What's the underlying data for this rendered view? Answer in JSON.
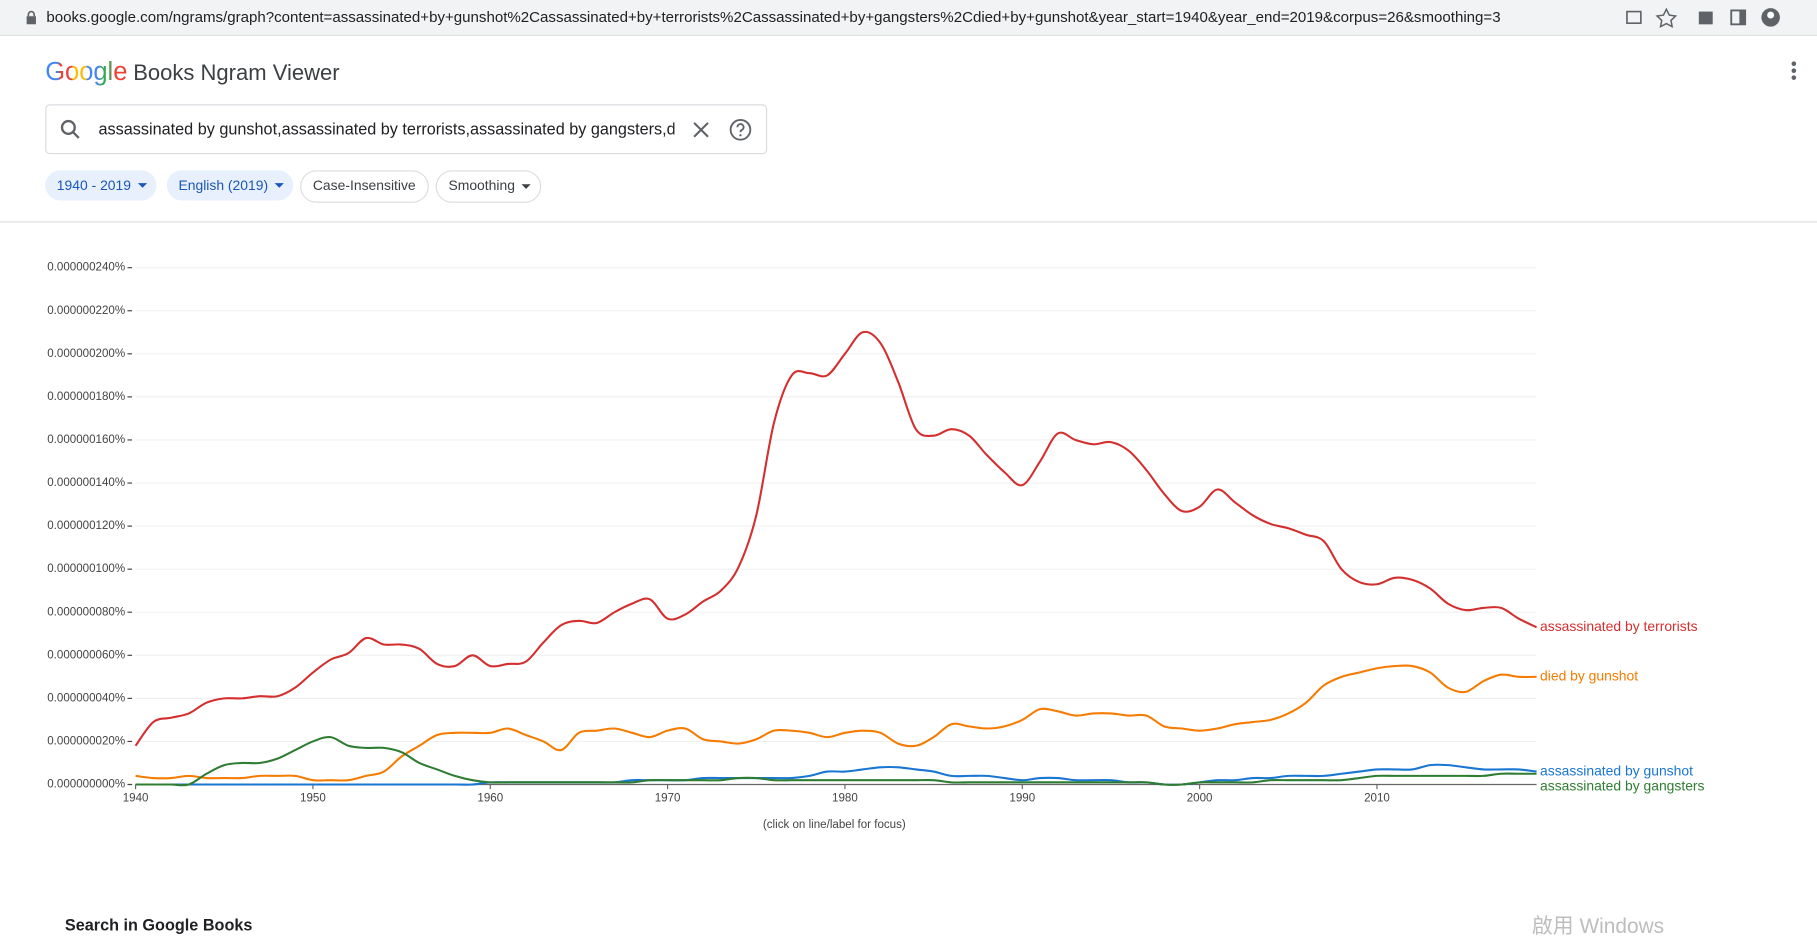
{
  "browser": {
    "url": "books.google.com/ngrams/graph?content=assassinated+by+gunshot%2Cassassinated+by+terrorists%2Cassassinated+by+gangsters%2Cdied+by+gunshot&year_start=1940&year_end=2019&corpus=26&smoothing=3"
  },
  "header": {
    "logo": "Google",
    "app": "Books Ngram Viewer"
  },
  "search": {
    "query": "assassinated by gunshot,assassinated by terrorists,assassinated by gangsters,died by gunshot"
  },
  "chips": [
    "1940 - 2019",
    "English (2019)",
    "Case-Insensitive",
    "Smoothing"
  ],
  "footer": {
    "section": "Search in Google Books",
    "watermark": "啟用 Windows"
  },
  "chart_data": {
    "type": "line",
    "note": "(click on line/label for focus)",
    "x": [
      1940,
      1941,
      1942,
      1943,
      1944,
      1945,
      1946,
      1947,
      1948,
      1949,
      1950,
      1951,
      1952,
      1953,
      1954,
      1955,
      1956,
      1957,
      1958,
      1959,
      1960,
      1961,
      1962,
      1963,
      1964,
      1965,
      1966,
      1967,
      1968,
      1969,
      1970,
      1971,
      1972,
      1973,
      1974,
      1975,
      1976,
      1977,
      1978,
      1979,
      1980,
      1981,
      1982,
      1983,
      1984,
      1985,
      1986,
      1987,
      1988,
      1989,
      1990,
      1991,
      1992,
      1993,
      1994,
      1995,
      1996,
      1997,
      1998,
      1999,
      2000,
      2001,
      2002,
      2003,
      2004,
      2005,
      2006,
      2007,
      2008,
      2009,
      2010,
      2011,
      2012,
      2013,
      2014,
      2015,
      2016,
      2017,
      2018,
      2019
    ],
    "xlim": [
      1940,
      2019
    ],
    "xticks": [
      1940,
      1950,
      1960,
      1970,
      1980,
      1990,
      2000,
      2010
    ],
    "ylim": [
      0,
      2.4e-07
    ],
    "yticks": [
      {
        "value": 0,
        "label": "0.000000000%"
      },
      {
        "value": 2e-08,
        "label": "0.000000020%"
      },
      {
        "value": 4e-08,
        "label": "0.000000040%"
      },
      {
        "value": 6e-08,
        "label": "0.000000060%"
      },
      {
        "value": 8e-08,
        "label": "0.000000080%"
      },
      {
        "value": 1e-07,
        "label": "0.000000100%"
      },
      {
        "value": 1.2e-07,
        "label": "0.000000120%"
      },
      {
        "value": 1.4e-07,
        "label": "0.000000140%"
      },
      {
        "value": 1.6e-07,
        "label": "0.000000160%"
      },
      {
        "value": 1.8e-07,
        "label": "0.000000180%"
      },
      {
        "value": 2e-07,
        "label": "0.000000200%"
      },
      {
        "value": 2.2e-07,
        "label": "0.000000220%"
      },
      {
        "value": 2.4e-07,
        "label": "0.000000240%"
      }
    ],
    "grid": true,
    "series": [
      {
        "name": "assassinated by terrorists",
        "color": "#d32f2f",
        "values": [
          1.8e-08,
          2.9e-08,
          3.1e-08,
          3.3e-08,
          3.8e-08,
          4e-08,
          4e-08,
          4.1e-08,
          4.1e-08,
          4.5e-08,
          5.2e-08,
          5.8e-08,
          6.1e-08,
          6.8e-08,
          6.5e-08,
          6.5e-08,
          6.3e-08,
          5.6e-08,
          5.5e-08,
          6e-08,
          5.5e-08,
          5.6e-08,
          5.7e-08,
          6.6e-08,
          7.4e-08,
          7.6e-08,
          7.5e-08,
          8e-08,
          8.4e-08,
          8.6e-08,
          7.7e-08,
          7.9e-08,
          8.5e-08,
          9e-08,
          1.01e-07,
          1.25e-07,
          1.68e-07,
          1.9e-07,
          1.91e-07,
          1.9e-07,
          2e-07,
          2.1e-07,
          2.05e-07,
          1.87e-07,
          1.65e-07,
          1.62e-07,
          1.65e-07,
          1.62e-07,
          1.53e-07,
          1.45e-07,
          1.39e-07,
          1.5e-07,
          1.63e-07,
          1.6e-07,
          1.58e-07,
          1.59e-07,
          1.55e-07,
          1.46e-07,
          1.35e-07,
          1.27e-07,
          1.29e-07,
          1.37e-07,
          1.31e-07,
          1.25e-07,
          1.21e-07,
          1.19e-07,
          1.16e-07,
          1.13e-07,
          1e-07,
          9.4e-08,
          9.3e-08,
          9.6e-08,
          9.5e-08,
          9.1e-08,
          8.4e-08,
          8.1e-08,
          8.2e-08,
          8.2e-08,
          7.7e-08,
          7.3e-08
        ]
      },
      {
        "name": "died by gunshot",
        "color": "#f57c00",
        "values": [
          4e-09,
          3e-09,
          3e-09,
          4e-09,
          3e-09,
          3e-09,
          3e-09,
          4e-09,
          4e-09,
          4e-09,
          2e-09,
          2e-09,
          2e-09,
          4e-09,
          6e-09,
          1.3e-08,
          1.8e-08,
          2.3e-08,
          2.4e-08,
          2.4e-08,
          2.4e-08,
          2.6e-08,
          2.3e-08,
          2e-08,
          1.6e-08,
          2.4e-08,
          2.5e-08,
          2.6e-08,
          2.4e-08,
          2.2e-08,
          2.5e-08,
          2.6e-08,
          2.1e-08,
          2e-08,
          1.9e-08,
          2.1e-08,
          2.5e-08,
          2.5e-08,
          2.4e-08,
          2.2e-08,
          2.4e-08,
          2.5e-08,
          2.4e-08,
          1.9e-08,
          1.8e-08,
          2.2e-08,
          2.8e-08,
          2.7e-08,
          2.6e-08,
          2.7e-08,
          3e-08,
          3.5e-08,
          3.4e-08,
          3.2e-08,
          3.3e-08,
          3.3e-08,
          3.2e-08,
          3.2e-08,
          2.7e-08,
          2.6e-08,
          2.5e-08,
          2.6e-08,
          2.8e-08,
          2.9e-08,
          3e-08,
          3.3e-08,
          3.8e-08,
          4.6e-08,
          5e-08,
          5.2e-08,
          5.4e-08,
          5.5e-08,
          5.5e-08,
          5.2e-08,
          4.5e-08,
          4.3e-08,
          4.8e-08,
          5.1e-08,
          5e-08,
          5e-08
        ]
      },
      {
        "name": "assassinated by gunshot",
        "color": "#1976d2",
        "values": [
          0,
          0,
          0,
          0,
          0,
          0,
          0,
          0,
          0,
          0,
          0,
          0,
          0,
          0,
          0,
          0,
          0,
          0,
          0,
          0,
          1e-09,
          1e-09,
          1e-09,
          1e-09,
          1e-09,
          1e-09,
          1e-09,
          1e-09,
          2e-09,
          2e-09,
          2e-09,
          2e-09,
          3e-09,
          3e-09,
          3e-09,
          3e-09,
          3e-09,
          3e-09,
          4e-09,
          6e-09,
          6e-09,
          7e-09,
          8e-09,
          8e-09,
          7e-09,
          6e-09,
          4e-09,
          4e-09,
          4e-09,
          3e-09,
          2e-09,
          3e-09,
          3e-09,
          2e-09,
          2e-09,
          2e-09,
          1e-09,
          1e-09,
          0,
          0,
          1e-09,
          2e-09,
          2e-09,
          3e-09,
          3e-09,
          4e-09,
          4e-09,
          4e-09,
          5e-09,
          6e-09,
          7e-09,
          7e-09,
          7e-09,
          9e-09,
          9e-09,
          8e-09,
          7e-09,
          7e-09,
          7e-09,
          6e-09
        ]
      },
      {
        "name": "assassinated by gangsters",
        "color": "#2e7d32",
        "values": [
          0,
          0,
          0,
          0,
          5e-09,
          9e-09,
          1e-08,
          1e-08,
          1.2e-08,
          1.6e-08,
          2e-08,
          2.2e-08,
          1.8e-08,
          1.7e-08,
          1.7e-08,
          1.5e-08,
          1e-08,
          7e-09,
          4e-09,
          2e-09,
          1e-09,
          1e-09,
          1e-09,
          1e-09,
          1e-09,
          1e-09,
          1e-09,
          1e-09,
          1e-09,
          2e-09,
          2e-09,
          2e-09,
          2e-09,
          2e-09,
          3e-09,
          3e-09,
          2e-09,
          2e-09,
          2e-09,
          2e-09,
          2e-09,
          2e-09,
          2e-09,
          2e-09,
          2e-09,
          2e-09,
          1e-09,
          1e-09,
          1e-09,
          1e-09,
          1e-09,
          1e-09,
          1e-09,
          1e-09,
          1e-09,
          1e-09,
          1e-09,
          1e-09,
          0,
          0,
          1e-09,
          1e-09,
          1e-09,
          1e-09,
          2e-09,
          2e-09,
          2e-09,
          2e-09,
          2e-09,
          3e-09,
          4e-09,
          4e-09,
          4e-09,
          4e-09,
          4e-09,
          4e-09,
          4e-09,
          5e-09,
          5e-09,
          5e-09
        ]
      }
    ]
  }
}
